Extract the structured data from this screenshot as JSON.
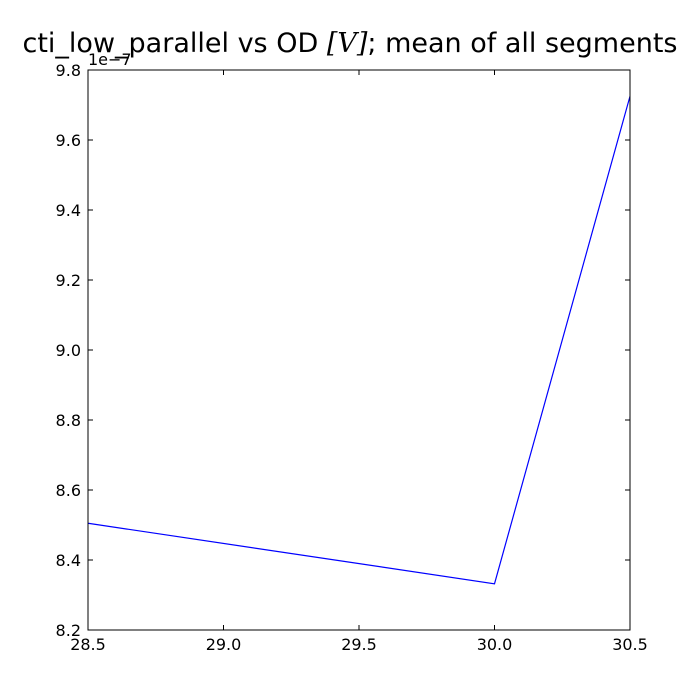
{
  "chart_data": {
    "type": "line",
    "title": {
      "prefix": "cti_low_parallel vs OD ",
      "math": "[V]",
      "suffix": "; mean of all segments"
    },
    "xlabel": "",
    "ylabel": "",
    "y_offset_text": "1e−7",
    "xlim": [
      28.5,
      30.5
    ],
    "ylim": [
      8.2,
      9.8
    ],
    "x_ticks": [
      28.5,
      29.0,
      29.5,
      30.0,
      30.5
    ],
    "x_tick_labels": [
      "28.5",
      "29.0",
      "29.5",
      "30.0",
      "30.5"
    ],
    "y_ticks": [
      8.2,
      8.4,
      8.6,
      8.8,
      9.0,
      9.2,
      9.4,
      9.6,
      9.8
    ],
    "y_tick_labels": [
      "8.2",
      "8.4",
      "8.6",
      "8.8",
      "9.0",
      "9.2",
      "9.4",
      "9.6",
      "9.8"
    ],
    "grid": false,
    "series": [
      {
        "color": "#0000ff",
        "x": [
          28.5,
          30.0,
          30.5
        ],
        "y": [
          8.505,
          8.332,
          9.725
        ]
      }
    ]
  }
}
